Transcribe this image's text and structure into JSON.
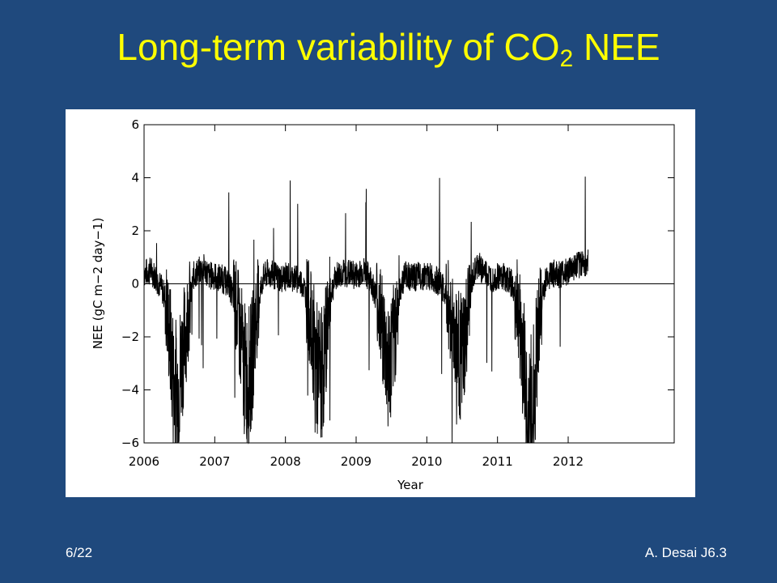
{
  "slide": {
    "title_main": "Long-term variability of CO",
    "title_sub": "2",
    "title_end": " NEE",
    "page_number": "6/22",
    "author_ref": "A. Desai J6.3"
  },
  "colors": {
    "background": "#1f497d",
    "title": "#ffff00",
    "footer_text": "#ffffff",
    "plot_line": "#000000"
  },
  "chart_data": {
    "type": "line",
    "title": "",
    "xlabel": "Year",
    "ylabel": "NEE (gC m−2 day−1)",
    "xlim": [
      2006,
      2013.5
    ],
    "ylim": [
      -6,
      6
    ],
    "xticks": [
      "2006",
      "2007",
      "2008",
      "2009",
      "2010",
      "2011",
      "2012"
    ],
    "yticks": [
      "6",
      "4",
      "2",
      "0",
      "−2",
      "−4",
      "−6"
    ],
    "reference_line_y": 0,
    "grid": false,
    "series": [
      {
        "note_free": true,
        "x": [
          2006.0,
          2006.1,
          2006.2,
          2006.3,
          2006.38,
          2006.42,
          2006.47,
          2006.52,
          2006.57,
          2006.62,
          2006.7,
          2006.78,
          2006.85,
          2006.92,
          2007.0,
          2007.1,
          2007.2,
          2007.3,
          2007.38,
          2007.42,
          2007.47,
          2007.52,
          2007.57,
          2007.62,
          2007.68,
          2007.75,
          2007.85,
          2007.95,
          2008.05,
          2008.15,
          2008.25,
          2008.32,
          2008.4,
          2008.45,
          2008.5,
          2008.55,
          2008.6,
          2008.65,
          2008.72,
          2008.8,
          2008.9,
          2009.0,
          2009.1,
          2009.2,
          2009.3,
          2009.38,
          2009.43,
          2009.48,
          2009.53,
          2009.58,
          2009.63,
          2009.7,
          2009.8,
          2009.9,
          2010.0,
          2010.1,
          2010.2,
          2010.3,
          2010.38,
          2010.45,
          2010.5,
          2010.55,
          2010.6,
          2010.65,
          2010.72,
          2010.8,
          2010.9,
          2011.0,
          2011.1,
          2011.2,
          2011.3,
          2011.38,
          2011.43,
          2011.48,
          2011.53,
          2011.58,
          2011.63,
          2011.7,
          2011.78,
          2011.88,
          2012.0,
          2012.1,
          2012.2,
          2012.28
        ],
        "y": [
          0.4,
          0.5,
          0.1,
          -0.5,
          -2.5,
          -3.8,
          -4.2,
          -3.0,
          -2.2,
          -1.2,
          0.3,
          0.5,
          0.6,
          0.3,
          0.3,
          0.2,
          0.0,
          -0.8,
          -2.3,
          -3.3,
          -3.6,
          -3.1,
          -1.5,
          -0.6,
          0.2,
          0.4,
          0.3,
          0.2,
          0.3,
          0.2,
          0.0,
          -0.8,
          -2.2,
          -3.3,
          -3.6,
          -2.8,
          -1.2,
          -0.3,
          0.3,
          0.4,
          0.4,
          0.3,
          0.5,
          0.2,
          -0.6,
          -1.8,
          -2.9,
          -3.1,
          -2.2,
          -1.0,
          -0.1,
          0.4,
          0.2,
          0.3,
          0.3,
          0.2,
          0.0,
          -0.7,
          -1.8,
          -2.6,
          -2.9,
          -2.0,
          -0.8,
          0.2,
          0.7,
          0.5,
          0.2,
          0.3,
          0.3,
          0.0,
          -1.2,
          -3.2,
          -5.5,
          -5.2,
          -3.5,
          -1.5,
          -0.5,
          0.3,
          0.4,
          0.3,
          0.5,
          0.6,
          0.8,
          0.8
        ]
      }
    ]
  }
}
